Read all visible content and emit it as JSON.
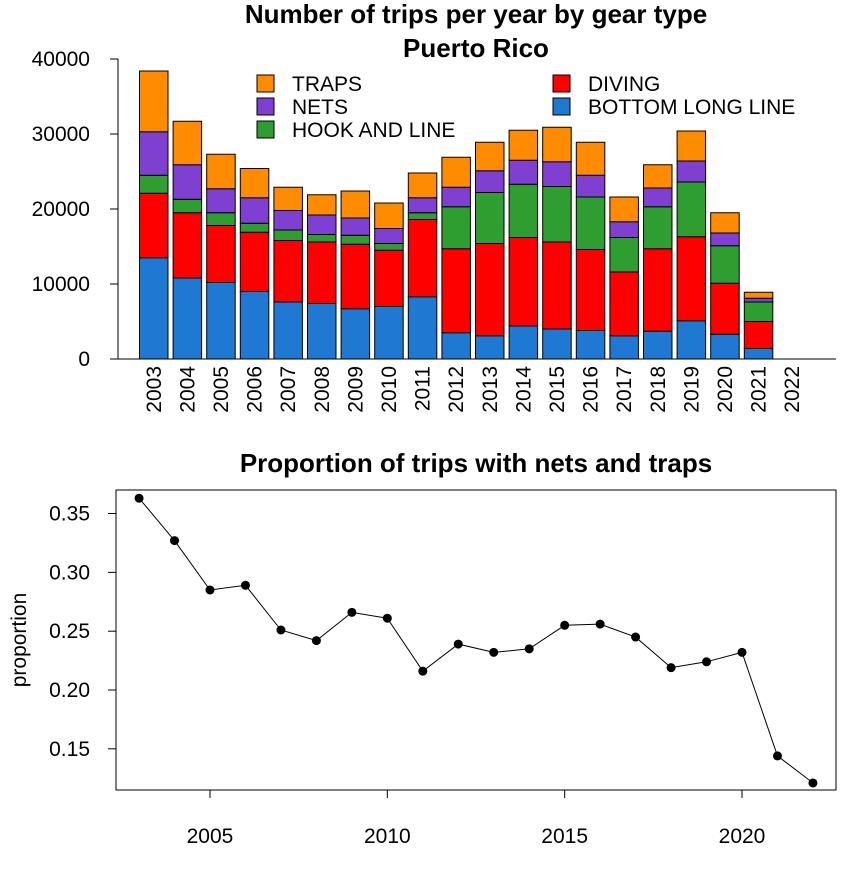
{
  "chart_data": [
    {
      "type": "bar",
      "stacked": true,
      "title": "Number of trips per year by gear type",
      "subtitle": "Puerto Rico",
      "xlabel": "",
      "ylabel": "",
      "ylim": [
        0,
        40000
      ],
      "yticks": [
        "0",
        "10000",
        "20000",
        "30000",
        "40000"
      ],
      "categories": [
        "2003",
        "2004",
        "2005",
        "2006",
        "2007",
        "2008",
        "2009",
        "2010",
        "2011",
        "2012",
        "2013",
        "2014",
        "2015",
        "2016",
        "2017",
        "2018",
        "2019",
        "2020",
        "2021",
        "2022"
      ],
      "legend_position": "top-right",
      "legend": [
        {
          "label": "TRAPS",
          "color": "#ff8c00"
        },
        {
          "label": "NETS",
          "color": "#7f3fd0"
        },
        {
          "label": "HOOK AND LINE",
          "color": "#2e9e30"
        },
        {
          "label": "DIVING",
          "color": "#ff0000"
        },
        {
          "label": "BOTTOM LONG LINE",
          "color": "#1f78d1"
        }
      ],
      "series": [
        {
          "name": "BOTTOM LONG LINE",
          "color": "#1f78d1",
          "values": [
            13500,
            10800,
            10200,
            9000,
            7600,
            7400,
            6700,
            7000,
            8300,
            3500,
            3100,
            4400,
            4000,
            3800,
            3100,
            3700,
            5100,
            3300,
            1400,
            0
          ]
        },
        {
          "name": "DIVING",
          "color": "#ff0000",
          "values": [
            8600,
            8700,
            7600,
            7900,
            8200,
            8200,
            8600,
            7500,
            10300,
            11200,
            12300,
            11800,
            11600,
            10800,
            8500,
            11000,
            11200,
            6800,
            3600,
            0
          ]
        },
        {
          "name": "HOOK AND LINE",
          "color": "#2e9e30",
          "values": [
            2400,
            1800,
            1700,
            1200,
            1400,
            1000,
            1200,
            900,
            900,
            5600,
            6800,
            7100,
            7400,
            7000,
            4600,
            5600,
            7300,
            5000,
            2600,
            0
          ]
        },
        {
          "name": "NETS",
          "color": "#7f3fd0",
          "values": [
            5800,
            4600,
            3200,
            3400,
            2600,
            2600,
            2300,
            2000,
            2000,
            2600,
            2900,
            3200,
            3300,
            2900,
            2100,
            2500,
            2800,
            1700,
            500,
            0
          ]
        },
        {
          "name": "TRAPS",
          "color": "#ff8c00",
          "values": [
            8100,
            5800,
            4600,
            3900,
            3100,
            2700,
            3600,
            3400,
            3300,
            4000,
            3800,
            4000,
            4600,
            4400,
            3300,
            3100,
            4000,
            2700,
            800,
            0
          ]
        }
      ]
    },
    {
      "type": "line",
      "title": "Proportion of trips with nets and traps",
      "xlabel": "",
      "ylabel": "proportion",
      "xlim": [
        2002.35,
        2022.65
      ],
      "ylim": [
        0.115,
        0.37
      ],
      "xticks": [
        "2005",
        "2010",
        "2015",
        "2020"
      ],
      "yticks": [
        "0.15",
        "0.20",
        "0.25",
        "0.30",
        "0.35"
      ],
      "x": [
        2003,
        2004,
        2005,
        2006,
        2007,
        2008,
        2009,
        2010,
        2011,
        2012,
        2013,
        2014,
        2015,
        2016,
        2017,
        2018,
        2019,
        2020,
        2021,
        2022
      ],
      "y": [
        0.363,
        0.327,
        0.285,
        0.289,
        0.251,
        0.242,
        0.266,
        0.261,
        0.216,
        0.239,
        0.232,
        0.235,
        0.255,
        0.256,
        0.245,
        0.219,
        0.224,
        0.232,
        0.144,
        0.121
      ]
    }
  ]
}
